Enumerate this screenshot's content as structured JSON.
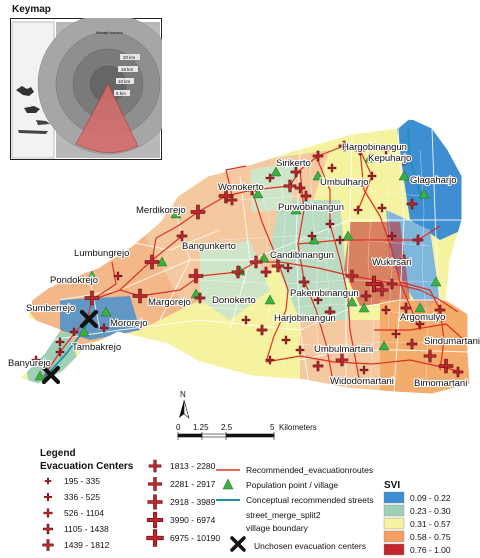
{
  "keymap": {
    "title": "Keymap",
    "ring_labels": [
      "20 km",
      "15 km",
      "10 km",
      "5 km"
    ],
    "crater_label": "Merapi volcano"
  },
  "villages": [
    {
      "name": "Hargobinangun"
    },
    {
      "name": "Kepuharjo"
    },
    {
      "name": "Glagaharjo"
    },
    {
      "name": "Umbulharjo"
    },
    {
      "name": "Sirikerto"
    },
    {
      "name": "Wonokerto"
    },
    {
      "name": "Purwobinangun"
    },
    {
      "name": "Merdikorejo"
    },
    {
      "name": "Bangunkerto"
    },
    {
      "name": "Lumbungrejo"
    },
    {
      "name": "Candibinangun"
    },
    {
      "name": "Wukirsari"
    },
    {
      "name": "Pondokrejo"
    },
    {
      "name": "Margorejo"
    },
    {
      "name": "Donokerto"
    },
    {
      "name": "Pakembinangun"
    },
    {
      "name": "Sumberrejo"
    },
    {
      "name": "Mororejo"
    },
    {
      "name": "Harjobinangun"
    },
    {
      "name": "Argomulyo"
    },
    {
      "name": "Tambakrejo"
    },
    {
      "name": "Umbulmartani"
    },
    {
      "name": "Sindumartani"
    },
    {
      "name": "Banyurejo"
    },
    {
      "name": "Widodomartani"
    },
    {
      "name": "Bimomartani"
    }
  ],
  "scale_bar": {
    "ticks": [
      "0",
      "1.25",
      "2.5",
      "5"
    ],
    "unit": "Kilometers",
    "north": "N"
  },
  "legend": {
    "title": "Legend",
    "evac_title": "Evacuation Centers",
    "evac_classes_left": [
      "195 - 335",
      "336 - 525",
      "526 - 1104",
      "1105 - 1438",
      "1439 - 1812"
    ],
    "evac_classes_right": [
      "1813 - 2280",
      "2281 - 2917",
      "2918 - 3989",
      "3990 - 6974",
      "6975 - 10190"
    ],
    "lines": [
      {
        "label": "Recommended_evacuationroutes",
        "color": "#e0301e"
      },
      {
        "label": "Population point / village",
        "color": "#3cb043"
      },
      {
        "label": "Conceptual recommended streets",
        "color": "#1f8fb4"
      },
      {
        "label": "street_merge_split2",
        "color": ""
      },
      {
        "label": "village boundary",
        "color": ""
      }
    ],
    "unchosen": "Unchosen evacuation centers",
    "svi_title": "SVI",
    "svi_classes": [
      {
        "label": "0.09 - 0.22",
        "color": "#3d8fd1"
      },
      {
        "label": "0.23 - 0.30",
        "color": "#9ed0b8"
      },
      {
        "label": "0.31 - 0.57",
        "color": "#f5f2a0"
      },
      {
        "label": "0.58 - 0.75",
        "color": "#f3a063"
      },
      {
        "label": "0.76 - 1.00",
        "color": "#c1272d"
      }
    ]
  }
}
